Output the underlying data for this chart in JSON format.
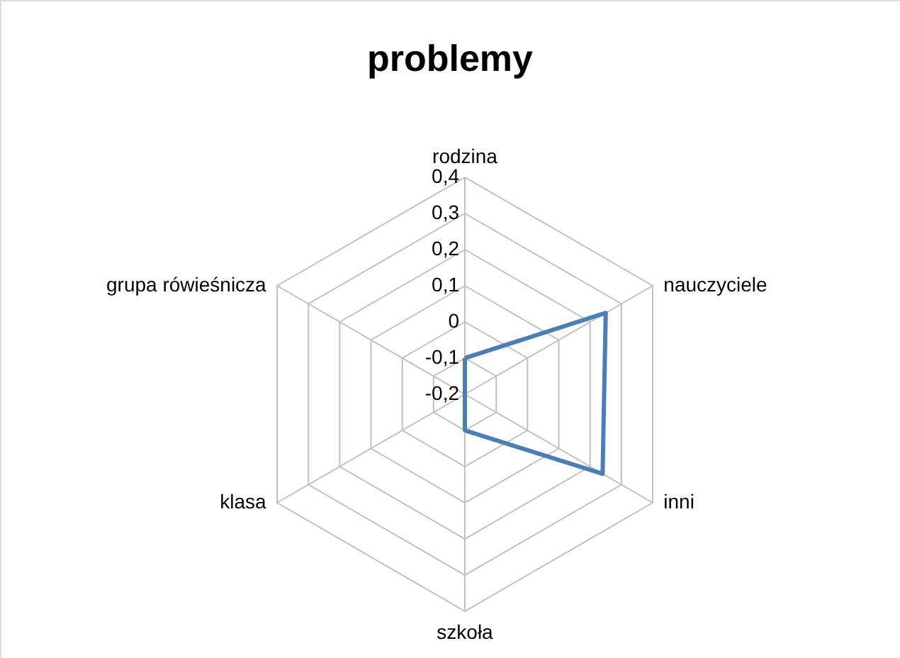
{
  "chart_data": {
    "type": "radar",
    "title": "problemy",
    "categories": [
      "rodzina",
      "nauczyciele",
      "inni",
      "szkoła",
      "klasa",
      "grupa rówieśnicza"
    ],
    "series": [
      {
        "color": "#4a7ebb",
        "values": [
          -0.1,
          0.25,
          0.24,
          -0.1,
          -0.2,
          -0.2
        ]
      }
    ],
    "ylim": [
      -0.2,
      0.4
    ],
    "yticks": [
      {
        "value": -0.2,
        "label": "-0,2"
      },
      {
        "value": -0.1,
        "label": "-0,1"
      },
      {
        "value": 0,
        "label": "0"
      },
      {
        "value": 0.1,
        "label": "0,1"
      },
      {
        "value": 0.2,
        "label": "0,2"
      },
      {
        "value": 0.3,
        "label": "0,3"
      },
      {
        "value": 0.4,
        "label": "0,4"
      }
    ],
    "grid": true,
    "marker": "none",
    "line_style": "solid"
  }
}
